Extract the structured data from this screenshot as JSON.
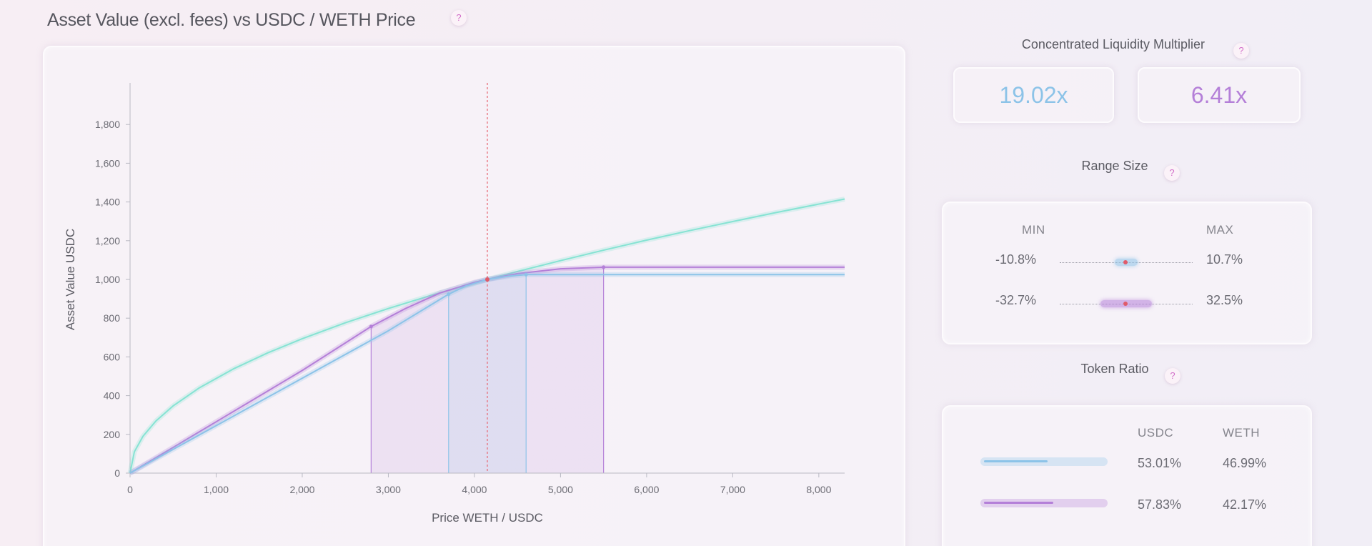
{
  "title": "Asset Value (excl. fees) vs USDC / WETH Price",
  "help_label": "?",
  "multiplier": {
    "title": "Concentrated Liquidity Multiplier",
    "values": [
      {
        "label": "19.02x",
        "color": "#8cc3e8"
      },
      {
        "label": "6.41x",
        "color": "#b47fd8"
      }
    ]
  },
  "range_size": {
    "title": "Range Size",
    "min_label": "MIN",
    "max_label": "MAX",
    "rows": [
      {
        "min": "-10.8%",
        "max": "10.7%",
        "color": "#8cc3e8"
      },
      {
        "min": "-32.7%",
        "max": "32.5%",
        "color": "#b47fd8"
      }
    ]
  },
  "token_ratio": {
    "title": "Token Ratio",
    "col1": "USDC",
    "col2": "WETH",
    "rows": [
      {
        "usdc": "53.01%",
        "weth": "46.99%",
        "usdc_fraction": 0.5301,
        "color": "#8cc3e8"
      },
      {
        "usdc": "57.83%",
        "weth": "42.17%",
        "usdc_fraction": 0.5783,
        "color": "#b47fd8"
      }
    ]
  },
  "chart_data": {
    "type": "line",
    "xlabel": "Price WETH / USDC",
    "ylabel": "Asset Value USDC",
    "xlim": [
      0,
      8300
    ],
    "ylim": [
      0,
      2000
    ],
    "x_ticks": [
      0,
      1000,
      2000,
      3000,
      4000,
      5000,
      6000,
      7000,
      8000
    ],
    "x_tick_labels": [
      "0",
      "1,000",
      "2,000",
      "3,000",
      "4,000",
      "5,000",
      "6,000",
      "7,000",
      "8,000"
    ],
    "y_ticks": [
      0,
      200,
      400,
      600,
      800,
      1000,
      1200,
      1400,
      1600,
      1800
    ],
    "y_tick_labels": [
      "0",
      "200",
      "400",
      "600",
      "800",
      "1,000",
      "1,200",
      "1,400",
      "1,600",
      "1,800"
    ],
    "current_price": 4150,
    "series": [
      {
        "color": "#86e3d3",
        "x": [
          0,
          50,
          150,
          300,
          500,
          800,
          1200,
          1600,
          2000,
          2500,
          3000,
          3500,
          4000,
          4150,
          4500,
          5000,
          5500,
          6000,
          6500,
          7000,
          7500,
          8000,
          8300
        ],
        "y": [
          0,
          110,
          190,
          269,
          347,
          439,
          538,
          621,
          694,
          776,
          850,
          918,
          982,
          1000,
          1041,
          1097,
          1151,
          1203,
          1252,
          1299,
          1345,
          1389,
          1415
        ]
      },
      {
        "color": "#b47fd8",
        "range": [
          2800,
          5500
        ],
        "x": [
          0,
          1000,
          2000,
          2800,
          3200,
          3600,
          4000,
          4150,
          4500,
          5000,
          5500,
          6000,
          7000,
          8300
        ],
        "y": [
          0,
          265,
          530,
          757,
          850,
          930,
          985,
          1000,
          1030,
          1055,
          1063,
          1063,
          1063,
          1063
        ]
      },
      {
        "color": "#8cc3e8",
        "range": [
          3700,
          4600
        ],
        "x": [
          0,
          1000,
          2000,
          3000,
          3700,
          3900,
          4150,
          4400,
          4600,
          5000,
          6000,
          7000,
          8300
        ],
        "y": [
          0,
          245,
          490,
          735,
          924,
          966,
          1000,
          1017,
          1025,
          1025,
          1025,
          1025,
          1025
        ]
      }
    ]
  }
}
